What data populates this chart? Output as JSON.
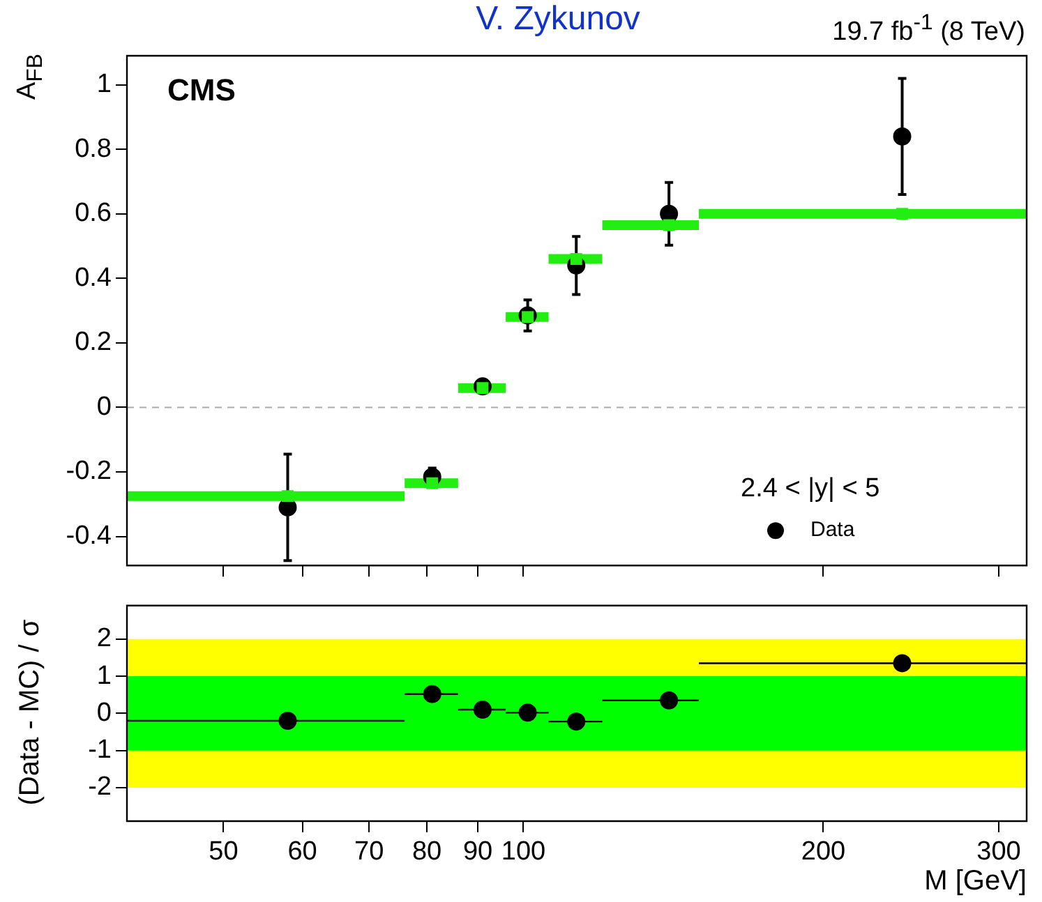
{
  "chart_data": [
    {
      "type": "scatter",
      "ylabel": "A$_{FB}$",
      "annotations": [
        "V. Zykunov",
        "19.7 fb$^{-1}$ (8 TeV)",
        "CMS"
      ],
      "legend_title": "2.4 < |y| < 5",
      "legend": "bottom right",
      "log": "x",
      "grid": false,
      "tick_labels": "y",
      "xlim": [
        40,
        320
      ],
      "xticks": [
        50,
        60,
        70,
        80,
        90,
        100,
        200,
        300
      ],
      "ylim": [
        -0.49,
        1.09
      ],
      "yticks": [
        -0.4,
        -0.2,
        0,
        0.2,
        0.4,
        0.6,
        0.8,
        1
      ],
      "ref_lines": [
        {
          "axis": "y",
          "value": 0,
          "color": "#aaaaaa",
          "line_style": "dashed"
        }
      ],
      "series": [
        {
          "type": "scatter",
          "color": "#22ee11",
          "x": [
            58,
            81,
            91,
            101,
            113,
            140,
            240
          ],
          "values": [
            -0.275,
            -0.235,
            0.06,
            0.28,
            0.46,
            0.565,
            0.6
          ],
          "xerrors": [
            [
              40,
              76
            ],
            [
              76,
              86
            ],
            [
              86,
              96
            ],
            [
              96,
              106
            ],
            [
              106,
              120
            ],
            [
              120,
              150
            ],
            [
              150,
              320
            ]
          ]
        },
        {
          "type": "scatter",
          "name": "Data",
          "marker": "circle",
          "color": "#000000",
          "x": [
            58,
            81,
            91,
            101,
            113,
            140,
            240
          ],
          "values": [
            -0.31,
            -0.215,
            0.065,
            0.285,
            0.44,
            0.6,
            0.84
          ],
          "errors": [
            0.165,
            0.027,
            null,
            0.048,
            0.09,
            0.097,
            0.18
          ]
        }
      ]
    },
    {
      "type": "scatter",
      "xlabel": "M [GeV]",
      "ylabel": "(Data - MC) / σ",
      "log": "x",
      "grid": false,
      "xlim": [
        40,
        320
      ],
      "xticks": [
        50,
        60,
        70,
        80,
        90,
        100,
        200,
        300
      ],
      "ylim": [
        -2.9,
        2.9
      ],
      "yticks": [
        -2,
        -1,
        0,
        1,
        2
      ],
      "bands": [
        {
          "axis": "y",
          "from": -2,
          "to": 2,
          "color": "#ffff00"
        },
        {
          "axis": "y",
          "from": -1,
          "to": 1,
          "color": "#00ff00"
        }
      ],
      "series": [
        {
          "type": "scatter",
          "marker": "circle",
          "color": "#000000",
          "x": [
            58,
            81,
            91,
            101,
            113,
            140,
            240
          ],
          "values": [
            -0.2,
            0.52,
            0.1,
            0.02,
            -0.22,
            0.35,
            1.35
          ],
          "xerrors": [
            [
              40,
              76
            ],
            [
              76,
              86
            ],
            [
              86,
              96
            ],
            [
              96,
              106
            ],
            [
              106,
              120
            ],
            [
              120,
              150
            ],
            [
              150,
              320
            ]
          ]
        }
      ]
    }
  ]
}
